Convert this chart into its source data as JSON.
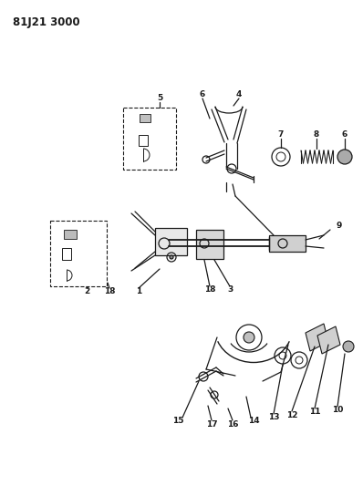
{
  "title": "81J21 3000",
  "bg_color": "#ffffff",
  "lc": "#1a1a1a",
  "title_fontsize": 8.5,
  "label_fontsize": 6.5
}
